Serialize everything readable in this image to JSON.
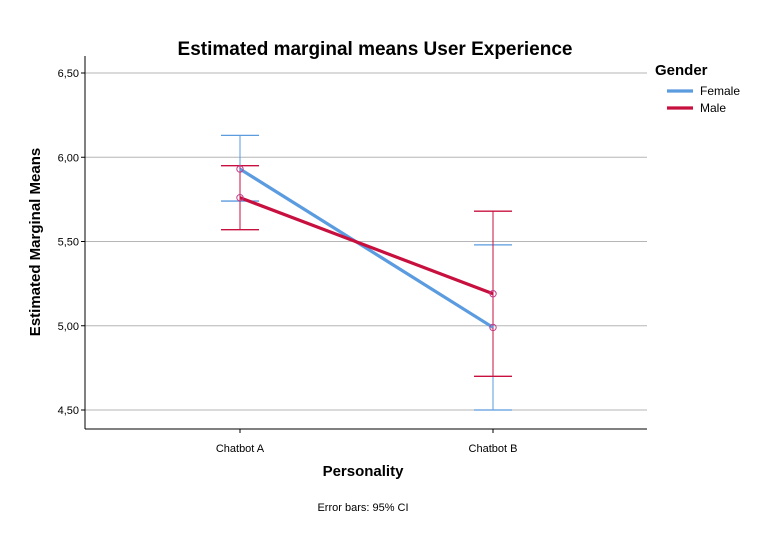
{
  "chart_data": {
    "type": "line",
    "title": "Estimated marginal means User Experience",
    "xlabel": "Personality",
    "ylabel": "Estimated Marginal Means",
    "categories": [
      "Chatbot A",
      "Chatbot B"
    ],
    "ylim": [
      4.45,
      6.55
    ],
    "yticks": [
      "4,50",
      "5,00",
      "5,50",
      "6,00",
      "6,50"
    ],
    "ytick_values": [
      4.5,
      5.0,
      5.5,
      6.0,
      6.5
    ],
    "grid": true,
    "legend_title": "Gender",
    "legend_position": "top-right, outside plot",
    "series": [
      {
        "name": "Female",
        "color": "#5b9bdf",
        "values": [
          5.93,
          4.99
        ],
        "ci_low": [
          5.74,
          4.5
        ],
        "ci_high": [
          6.13,
          5.48
        ]
      },
      {
        "name": "Male",
        "color": "#c8103f",
        "values": [
          5.76,
          5.19
        ],
        "ci_low": [
          5.57,
          4.7
        ],
        "ci_high": [
          5.95,
          5.68
        ]
      }
    ],
    "footnote": "Error bars: 95% CI"
  }
}
